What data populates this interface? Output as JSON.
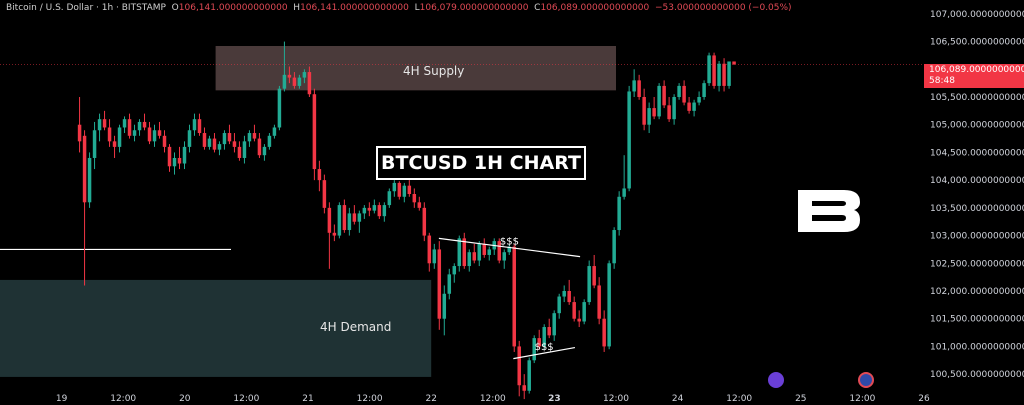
{
  "header": {
    "symbol": "Bitcoin / U.S. Dollar · 1h · BITSTAMP",
    "o_label": "O",
    "o_value": "106,141.000000000000",
    "h_label": "H",
    "h_value": "106,141.000000000000",
    "l_label": "L",
    "l_value": "106,079.000000000000",
    "c_label": "C",
    "c_value": "106,089.000000000000",
    "change": "−53.000000000000 (−0.05%)"
  },
  "chart_data": {
    "type": "candlestick",
    "title": "BTCUSD 1H CHART",
    "ylim": [
      100250,
      107250
    ],
    "y_ticks": [
      "107,000.000000000000",
      "106,500.000000000000",
      "106,000.000000000000",
      "105,500.000000000000",
      "105,000.000000000000",
      "104,500.000000000000",
      "104,000.000000000000",
      "103,500.000000000000",
      "103,000.000000000000",
      "102,500.000000000000",
      "102,000.000000000000",
      "101,500.000000000000",
      "101,000.000000000000",
      "100,500.000000000000"
    ],
    "y_tick_values": [
      107000,
      106500,
      106000,
      105500,
      105000,
      104500,
      104000,
      103500,
      103000,
      102500,
      102000,
      101500,
      101000,
      100500
    ],
    "x_ticks": [
      "19",
      "12:00",
      "20",
      "12:00",
      "21",
      "12:00",
      "22",
      "12:00",
      "23",
      "12:00",
      "24",
      "12:00",
      "25",
      "12:00",
      "26"
    ],
    "x_tick_bold": [
      "23"
    ],
    "x_range_hours": [
      -12,
      168
    ],
    "x_tick_hours": [
      0,
      12,
      24,
      36,
      48,
      60,
      72,
      84,
      96,
      108,
      120,
      132,
      144,
      156,
      168
    ],
    "current_price": {
      "value": 106089,
      "label": "106,089.000000000000",
      "countdown": "58:48",
      "color": "#f23645"
    },
    "zones": [
      {
        "name": "4H Supply",
        "y_from": 105620,
        "y_to": 106420,
        "x_hours": [
          30,
          108
        ],
        "color": "#4a3a3a"
      },
      {
        "name": "4H Demand",
        "y_from": 100450,
        "y_to": 102200,
        "x_hours": [
          -12,
          72
        ],
        "color": "#1f3234"
      }
    ],
    "level_line": {
      "y": 102750,
      "x_hours": [
        -12,
        33
      ],
      "color": "#ffffff"
    },
    "annotations": [
      {
        "text": "$$$",
        "from": [
          73.5,
          102950
        ],
        "to": [
          101,
          102620
        ]
      },
      {
        "text": "$$$",
        "from": [
          88,
          100780
        ],
        "to": [
          100,
          100980
        ]
      }
    ],
    "candles": [
      [
        105000,
        105500,
        104500,
        104700
      ],
      [
        104800,
        104900,
        102100,
        103600
      ],
      [
        103600,
        104500,
        103500,
        104400
      ],
      [
        104400,
        105050,
        104200,
        104900
      ],
      [
        104900,
        105200,
        104700,
        105100
      ],
      [
        105100,
        105250,
        104900,
        104950
      ],
      [
        104950,
        105100,
        104600,
        104700
      ],
      [
        104700,
        104800,
        104400,
        104600
      ],
      [
        104600,
        105000,
        104500,
        104950
      ],
      [
        104950,
        105150,
        104850,
        105100
      ],
      [
        105100,
        105200,
        104750,
        104800
      ],
      [
        104800,
        105000,
        104700,
        104900
      ],
      [
        104900,
        105100,
        104800,
        105050
      ],
      [
        105050,
        105200,
        104900,
        104950
      ],
      [
        104950,
        105050,
        104650,
        104700
      ],
      [
        104700,
        105000,
        104600,
        104900
      ],
      [
        104900,
        105050,
        104750,
        104800
      ],
      [
        104800,
        104900,
        104500,
        104600
      ],
      [
        104600,
        104650,
        104150,
        104250
      ],
      [
        104250,
        104500,
        104100,
        104400
      ],
      [
        104400,
        104600,
        104200,
        104300
      ],
      [
        104300,
        104700,
        104200,
        104600
      ],
      [
        104600,
        105000,
        104500,
        104900
      ],
      [
        104900,
        105200,
        104800,
        105100
      ],
      [
        105100,
        105200,
        104800,
        104850
      ],
      [
        104850,
        104950,
        104550,
        104600
      ],
      [
        104600,
        104800,
        104550,
        104750
      ],
      [
        104750,
        104850,
        104500,
        104550
      ],
      [
        104550,
        104700,
        104450,
        104650
      ],
      [
        104650,
        104900,
        104550,
        104850
      ],
      [
        104850,
        105000,
        104650,
        104700
      ],
      [
        104700,
        104850,
        104500,
        104600
      ],
      [
        104600,
        104700,
        104350,
        104400
      ],
      [
        104400,
        104800,
        104300,
        104700
      ],
      [
        104700,
        104900,
        104600,
        104850
      ],
      [
        104850,
        105000,
        104700,
        104750
      ],
      [
        104750,
        104850,
        104400,
        104450
      ],
      [
        104450,
        104650,
        104350,
        104600
      ],
      [
        104600,
        104850,
        104550,
        104800
      ],
      [
        104800,
        105000,
        104750,
        104950
      ],
      [
        104950,
        105700,
        104900,
        105650
      ],
      [
        105650,
        106500,
        105600,
        105900
      ],
      [
        105900,
        106050,
        105750,
        105850
      ],
      [
        105850,
        105950,
        105650,
        105700
      ],
      [
        105700,
        105900,
        105650,
        105850
      ],
      [
        105850,
        106000,
        105750,
        105950
      ],
      [
        105950,
        106050,
        105500,
        105550
      ],
      [
        105550,
        105650,
        104000,
        104200
      ],
      [
        104200,
        104350,
        103800,
        104000
      ],
      [
        104000,
        104100,
        103400,
        103500
      ],
      [
        103500,
        103600,
        102400,
        103050
      ],
      [
        103050,
        103200,
        102900,
        103000
      ],
      [
        103000,
        103600,
        102950,
        103550
      ],
      [
        103550,
        103650,
        103050,
        103100
      ],
      [
        103100,
        103500,
        103000,
        103400
      ],
      [
        103400,
        103550,
        103200,
        103250
      ],
      [
        103250,
        103450,
        103050,
        103400
      ],
      [
        103400,
        103550,
        103300,
        103500
      ],
      [
        103500,
        103600,
        103350,
        103450
      ],
      [
        103450,
        103650,
        103400,
        103550
      ],
      [
        103550,
        103600,
        103300,
        103350
      ],
      [
        103350,
        103600,
        103250,
        103550
      ],
      [
        103550,
        103850,
        103500,
        103800
      ],
      [
        103800,
        104000,
        103700,
        103950
      ],
      [
        103950,
        103980,
        103650,
        103700
      ],
      [
        103700,
        103950,
        103600,
        103900
      ],
      [
        103900,
        104000,
        103700,
        103750
      ],
      [
        103750,
        103850,
        103500,
        103600
      ],
      [
        103600,
        103700,
        103450,
        103500
      ],
      [
        103500,
        103600,
        102900,
        103000
      ],
      [
        103000,
        103050,
        102350,
        102500
      ],
      [
        102500,
        102850,
        102400,
        102750
      ],
      [
        102750,
        102900,
        101300,
        101500
      ],
      [
        101500,
        102100,
        101200,
        101950
      ],
      [
        101950,
        102400,
        101850,
        102300
      ],
      [
        102300,
        102500,
        102150,
        102450
      ],
      [
        102450,
        103000,
        102350,
        102950
      ],
      [
        102950,
        103050,
        102400,
        102450
      ],
      [
        102450,
        102750,
        102350,
        102700
      ],
      [
        102700,
        102850,
        102500,
        102550
      ],
      [
        102550,
        102900,
        102450,
        102850
      ],
      [
        102850,
        102950,
        102600,
        102650
      ],
      [
        102650,
        102800,
        102550,
        102750
      ],
      [
        102750,
        102950,
        102650,
        102900
      ],
      [
        102900,
        102950,
        102500,
        102550
      ],
      [
        102550,
        102750,
        102400,
        102700
      ],
      [
        102700,
        102850,
        102650,
        102800
      ],
      [
        102800,
        102850,
        100900,
        101000
      ],
      [
        101000,
        101100,
        100100,
        100300
      ],
      [
        100300,
        100500,
        100050,
        100200
      ],
      [
        100200,
        100800,
        100150,
        100750
      ],
      [
        100750,
        101200,
        100700,
        101150
      ],
      [
        101150,
        101300,
        100950,
        101000
      ],
      [
        101000,
        101400,
        100950,
        101350
      ],
      [
        101350,
        101500,
        101150,
        101200
      ],
      [
        101200,
        101650,
        101100,
        101600
      ],
      [
        101600,
        101950,
        101500,
        101900
      ],
      [
        101900,
        102100,
        101800,
        102000
      ],
      [
        102000,
        102200,
        101750,
        101800
      ],
      [
        101800,
        101900,
        101450,
        101500
      ],
      [
        101500,
        101650,
        101350,
        101450
      ],
      [
        101450,
        101850,
        101400,
        101800
      ],
      [
        101800,
        102550,
        101750,
        102450
      ],
      [
        102450,
        102650,
        102050,
        102100
      ],
      [
        102100,
        102250,
        101400,
        101500
      ],
      [
        101500,
        101650,
        100900,
        101000
      ],
      [
        101000,
        102550,
        100950,
        102500
      ],
      [
        102500,
        103150,
        102400,
        103100
      ],
      [
        103100,
        103800,
        103000,
        103700
      ],
      [
        103700,
        104450,
        103650,
        103850
      ],
      [
        103850,
        105700,
        103800,
        105600
      ],
      [
        105600,
        106000,
        105500,
        105800
      ],
      [
        105800,
        105900,
        105450,
        105500
      ],
      [
        105500,
        105650,
        104900,
        105000
      ],
      [
        105000,
        105400,
        104850,
        105300
      ],
      [
        105300,
        105500,
        105100,
        105150
      ],
      [
        105150,
        105750,
        105100,
        105700
      ],
      [
        105700,
        105800,
        105300,
        105350
      ],
      [
        105350,
        105500,
        105050,
        105100
      ],
      [
        105100,
        105550,
        105000,
        105500
      ],
      [
        105500,
        105750,
        105450,
        105700
      ],
      [
        105700,
        105800,
        105350,
        105400
      ],
      [
        105400,
        105500,
        105200,
        105250
      ],
      [
        105250,
        105450,
        105150,
        105400
      ],
      [
        105400,
        105600,
        105350,
        105500
      ],
      [
        105500,
        105800,
        105450,
        105750
      ],
      [
        105750,
        106300,
        105700,
        106250
      ],
      [
        106250,
        106300,
        105650,
        105700
      ],
      [
        105700,
        106150,
        105600,
        106100
      ],
      [
        106100,
        106200,
        105600,
        105700
      ],
      [
        105700,
        106141,
        105650,
        106141
      ],
      [
        106141,
        106141,
        106079,
        106089
      ]
    ]
  },
  "watermark": {
    "name": "logo-mark",
    "color": "#ffffff"
  }
}
